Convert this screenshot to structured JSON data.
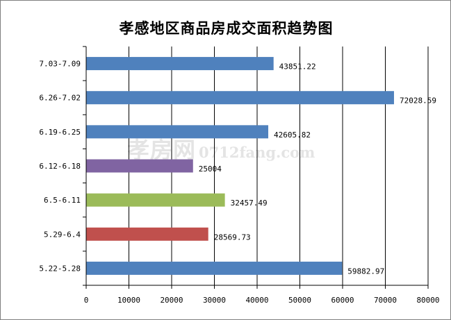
{
  "chart_data": {
    "type": "bar",
    "orientation": "horizontal",
    "title": "孝感地区商品房成交面积趋势图",
    "categories": [
      "7.03-7.09",
      "6.26-7.02",
      "6.19-6.25",
      "6.12-6.18",
      "6.5-6.11",
      "5.29-6.4",
      "5.22-5.28"
    ],
    "values": [
      43851.22,
      72028.59,
      42605.82,
      25004,
      32457.49,
      28569.73,
      59882.97
    ],
    "value_labels": [
      "43851.22",
      "72028.59",
      "42605.82",
      "25004",
      "32457.49",
      "28569.73",
      "59882.97"
    ],
    "bar_colors": [
      "#4f81bd",
      "#4f81bd",
      "#4f81bd",
      "#8064a2",
      "#9bbb59",
      "#c0504d",
      "#4f81bd"
    ],
    "xlim": [
      0,
      80000
    ],
    "xticks": [
      0,
      10000,
      20000,
      30000,
      40000,
      50000,
      60000,
      70000,
      80000
    ],
    "xtick_labels": [
      "0",
      "10000",
      "20000",
      "30000",
      "40000",
      "50000",
      "60000",
      "70000",
      "80000"
    ],
    "grid": "vertical",
    "legend": "none"
  },
  "watermark": {
    "big": "孝房网",
    "small": "0712fang.com"
  }
}
